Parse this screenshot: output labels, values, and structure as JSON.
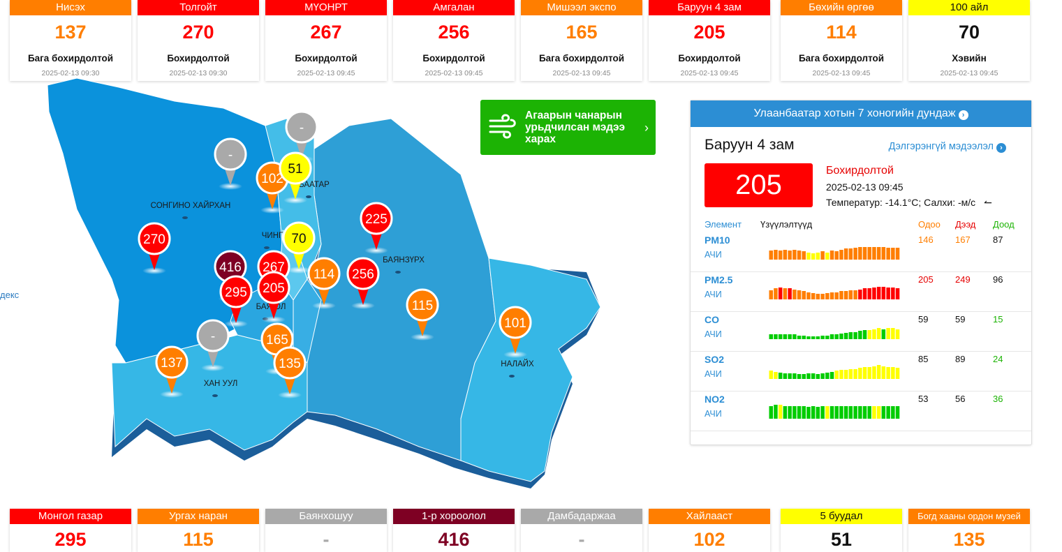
{
  "top_cards": [
    {
      "name": "Нисэх",
      "value": "137",
      "level": "Бага бохирдолтой",
      "time": "2025-02-13 09:30",
      "color": "#ff7e00"
    },
    {
      "name": "Толгойт",
      "value": "270",
      "level": "Бохирдолтой",
      "time": "2025-02-13 09:30",
      "color": "#ff0000"
    },
    {
      "name": "МҮОНРТ",
      "value": "267",
      "level": "Бохирдолтой",
      "time": "2025-02-13 09:45",
      "color": "#ff0000"
    },
    {
      "name": "Амгалан",
      "value": "256",
      "level": "Бохирдолтой",
      "time": "2025-02-13 09:45",
      "color": "#ff0000"
    },
    {
      "name": "Мишээл экспо",
      "value": "165",
      "level": "Бага бохирдолтой",
      "time": "2025-02-13 09:45",
      "color": "#ff7e00"
    },
    {
      "name": "Баруун 4 зам",
      "value": "205",
      "level": "Бохирдолтой",
      "time": "2025-02-13 09:45",
      "color": "#ff0000"
    },
    {
      "name": "Бөхийн өргөө",
      "value": "114",
      "level": "Бага бохирдолтой",
      "time": "2025-02-13 09:45",
      "color": "#ff7e00"
    },
    {
      "name": "100 айл",
      "value": "70",
      "level": "Хэвийн",
      "time": "2025-02-13 09:45",
      "color": "#ffff00"
    }
  ],
  "bottom_cards": [
    {
      "name": "Монгол газар",
      "value": "295",
      "color": "#ff0000"
    },
    {
      "name": "Ургах наран",
      "value": "115",
      "color": "#ff7e00"
    },
    {
      "name": "Баянхошуу",
      "value": "-",
      "color": "#a9a9a9"
    },
    {
      "name": "1-р хороолол",
      "value": "416",
      "color": "#7e0023"
    },
    {
      "name": "Дамбадаржаа",
      "value": "-",
      "color": "#a9a9a9"
    },
    {
      "name": "Хайлааст",
      "value": "102",
      "color": "#ff7e00"
    },
    {
      "name": "5 буудал",
      "value": "51",
      "color": "#ffff00"
    },
    {
      "name": "Богд хааны ордон музей",
      "value": "135",
      "color": "#ff7e00"
    }
  ],
  "map": {
    "left_link": "декс",
    "districts": [
      {
        "name": "СОНГИНО ХАЙРХАН"
      },
      {
        "name": "БААТАР"
      },
      {
        "name": "ЧИНГ"
      },
      {
        "name": "БАЯНЗҮРХ"
      },
      {
        "name": "БАЯ     ОЛ"
      },
      {
        "name": "ХАН УУЛ"
      },
      {
        "name": "НАЛАЙХ"
      }
    ],
    "markers": [
      {
        "value": "-",
        "color": "#a9a9a9"
      },
      {
        "value": "-",
        "color": "#a9a9a9"
      },
      {
        "value": "102",
        "color": "#ff7e00"
      },
      {
        "value": "51",
        "color": "#ffff00"
      },
      {
        "value": "225",
        "color": "#ff0000"
      },
      {
        "value": "270",
        "color": "#ff0000"
      },
      {
        "value": "70",
        "color": "#ffff00"
      },
      {
        "value": "416",
        "color": "#7e0023"
      },
      {
        "value": "267",
        "color": "#ff0000"
      },
      {
        "value": "114",
        "color": "#ff7e00"
      },
      {
        "value": "256",
        "color": "#ff0000"
      },
      {
        "value": "295",
        "color": "#ff0000"
      },
      {
        "value": "205",
        "color": "#ff0000"
      },
      {
        "value": "115",
        "color": "#ff7e00"
      },
      {
        "value": "101",
        "color": "#ff7e00"
      },
      {
        "value": "-",
        "color": "#a9a9a9"
      },
      {
        "value": "165",
        "color": "#ff7e00"
      },
      {
        "value": "137",
        "color": "#ff7e00"
      },
      {
        "value": "135",
        "color": "#ff7e00"
      }
    ]
  },
  "forecast": {
    "label": "Агаарын чанарын урьдчилсан мэдээ харах",
    "icon": "wind-icon"
  },
  "panel": {
    "header": "Улаанбаатар хотын 7 хоногийн дундаж",
    "station": "Баруун 4 зам",
    "more": "Дэлгэрэнгүй мэдээлэл",
    "aqi": "205",
    "level": "Бохирдолтой",
    "datetime": "2025-02-13 09:45",
    "weather": "Температур: -14.1°C; Салхи:  -м/с",
    "columns": {
      "element": "Элемент",
      "indicators": "Үзүүлэлтүүд",
      "current": "Одоо",
      "high": "Дээд",
      "low": "Доод"
    },
    "pollutants": [
      {
        "name": "PM10",
        "unit": "АЧИ",
        "current": "146",
        "high": "167",
        "low": "87",
        "current_color": "#ff7e00",
        "high_color": "#ff7e00",
        "low_color": "#111111",
        "bars": [
          "#ff7e00",
          "#ff7e00",
          "#ff7e00",
          "#ff7e00",
          "#ff7e00",
          "#ff7e00",
          "#ff7e00",
          "#ff7e00",
          "#ffff00",
          "#ffff00",
          "#ffff00",
          "#ff7e00",
          "#ffff00",
          "#ff7e00",
          "#ff7e00",
          "#ff7e00",
          "#ff7e00",
          "#ff7e00",
          "#ff7e00",
          "#ff7e00",
          "#ff7e00",
          "#ff7e00",
          "#ff7e00",
          "#ff7e00",
          "#ff7e00",
          "#ff7e00",
          "#ff7e00",
          "#ff7e00"
        ],
        "levels": [
          0.5,
          0.55,
          0.5,
          0.55,
          0.5,
          0.55,
          0.5,
          0.45,
          0.4,
          0.35,
          0.4,
          0.45,
          0.4,
          0.5,
          0.45,
          0.55,
          0.6,
          0.6,
          0.65,
          0.7,
          0.7,
          0.7,
          0.7,
          0.7,
          0.7,
          0.65,
          0.65,
          0.65
        ]
      },
      {
        "name": "PM2.5",
        "unit": "АЧИ",
        "current": "205",
        "high": "249",
        "low": "96",
        "current_color": "#e60000",
        "high_color": "#e60000",
        "low_color": "#111111",
        "bars": [
          "#ff7e00",
          "#ff7e00",
          "#ff0000",
          "#ff7e00",
          "#ff0000",
          "#ff7e00",
          "#ff7e00",
          "#ff7e00",
          "#ff7e00",
          "#ff7e00",
          "#ff7e00",
          "#ff7e00",
          "#ff7e00",
          "#ff7e00",
          "#ff7e00",
          "#ff7e00",
          "#ff7e00",
          "#ff7e00",
          "#ff7e00",
          "#ff0000",
          "#ff0000",
          "#ff0000",
          "#ff0000",
          "#ff0000",
          "#ff0000",
          "#ff0000",
          "#ff0000",
          "#ff0000"
        ],
        "levels": [
          0.5,
          0.6,
          0.65,
          0.6,
          0.6,
          0.55,
          0.5,
          0.45,
          0.4,
          0.35,
          0.3,
          0.3,
          0.35,
          0.4,
          0.4,
          0.45,
          0.45,
          0.5,
          0.5,
          0.55,
          0.6,
          0.6,
          0.65,
          0.7,
          0.7,
          0.65,
          0.65,
          0.6
        ]
      },
      {
        "name": "CO",
        "unit": "АЧИ",
        "current": "59",
        "high": "59",
        "low": "15",
        "current_color": "#111111",
        "high_color": "#111111",
        "low_color": "#1cb304",
        "bars": [
          "#00cc00",
          "#00cc00",
          "#00cc00",
          "#00cc00",
          "#00cc00",
          "#00cc00",
          "#00cc00",
          "#00cc00",
          "#00cc00",
          "#00cc00",
          "#00cc00",
          "#00cc00",
          "#00cc00",
          "#00cc00",
          "#00cc00",
          "#00cc00",
          "#00cc00",
          "#00cc00",
          "#00cc00",
          "#00cc00",
          "#00cc00",
          "#ffff00",
          "#ffff00",
          "#ffff00",
          "#00cc00",
          "#ffff00",
          "#ffff00",
          "#ffff00"
        ],
        "levels": [
          0.25,
          0.25,
          0.25,
          0.25,
          0.25,
          0.25,
          0.2,
          0.2,
          0.15,
          0.15,
          0.15,
          0.2,
          0.2,
          0.25,
          0.25,
          0.3,
          0.35,
          0.4,
          0.4,
          0.45,
          0.5,
          0.5,
          0.55,
          0.6,
          0.55,
          0.6,
          0.6,
          0.55
        ]
      },
      {
        "name": "SO2",
        "unit": "АЧИ",
        "current": "85",
        "high": "89",
        "low": "24",
        "current_color": "#111111",
        "high_color": "#111111",
        "low_color": "#1cb304",
        "bars": [
          "#ffff00",
          "#ffff00",
          "#00cc00",
          "#00cc00",
          "#00cc00",
          "#00cc00",
          "#00cc00",
          "#00cc00",
          "#00cc00",
          "#00cc00",
          "#00cc00",
          "#00cc00",
          "#00cc00",
          "#00cc00",
          "#ffff00",
          "#ffff00",
          "#ffff00",
          "#ffff00",
          "#ffff00",
          "#ffff00",
          "#ffff00",
          "#ffff00",
          "#ffff00",
          "#ffff00",
          "#ffff00",
          "#ffff00",
          "#ffff00",
          "#ffff00"
        ],
        "levels": [
          0.45,
          0.4,
          0.35,
          0.3,
          0.3,
          0.3,
          0.25,
          0.25,
          0.3,
          0.3,
          0.25,
          0.3,
          0.35,
          0.4,
          0.45,
          0.5,
          0.5,
          0.55,
          0.55,
          0.6,
          0.65,
          0.65,
          0.7,
          0.75,
          0.7,
          0.65,
          0.65,
          0.6
        ]
      },
      {
        "name": "NO2",
        "unit": "АЧИ",
        "current": "53",
        "high": "56",
        "low": "36",
        "current_color": "#111111",
        "high_color": "#111111",
        "low_color": "#1cb304",
        "bars": [
          "#00cc00",
          "#00cc00",
          "#ffff00",
          "#00cc00",
          "#00cc00",
          "#00cc00",
          "#00cc00",
          "#00cc00",
          "#00cc00",
          "#00cc00",
          "#00cc00",
          "#00cc00",
          "#ffff00",
          "#00cc00",
          "#00cc00",
          "#00cc00",
          "#00cc00",
          "#00cc00",
          "#00cc00",
          "#00cc00",
          "#00cc00",
          "#00cc00",
          "#ffff00",
          "#ffff00",
          "#00cc00",
          "#00cc00",
          "#00cc00",
          "#00cc00"
        ],
        "levels": [
          0.7,
          0.75,
          0.75,
          0.7,
          0.7,
          0.7,
          0.7,
          0.7,
          0.65,
          0.7,
          0.65,
          0.7,
          0.7,
          0.7,
          0.7,
          0.7,
          0.7,
          0.7,
          0.7,
          0.7,
          0.7,
          0.7,
          0.7,
          0.7,
          0.7,
          0.7,
          0.7,
          0.7
        ]
      }
    ]
  }
}
